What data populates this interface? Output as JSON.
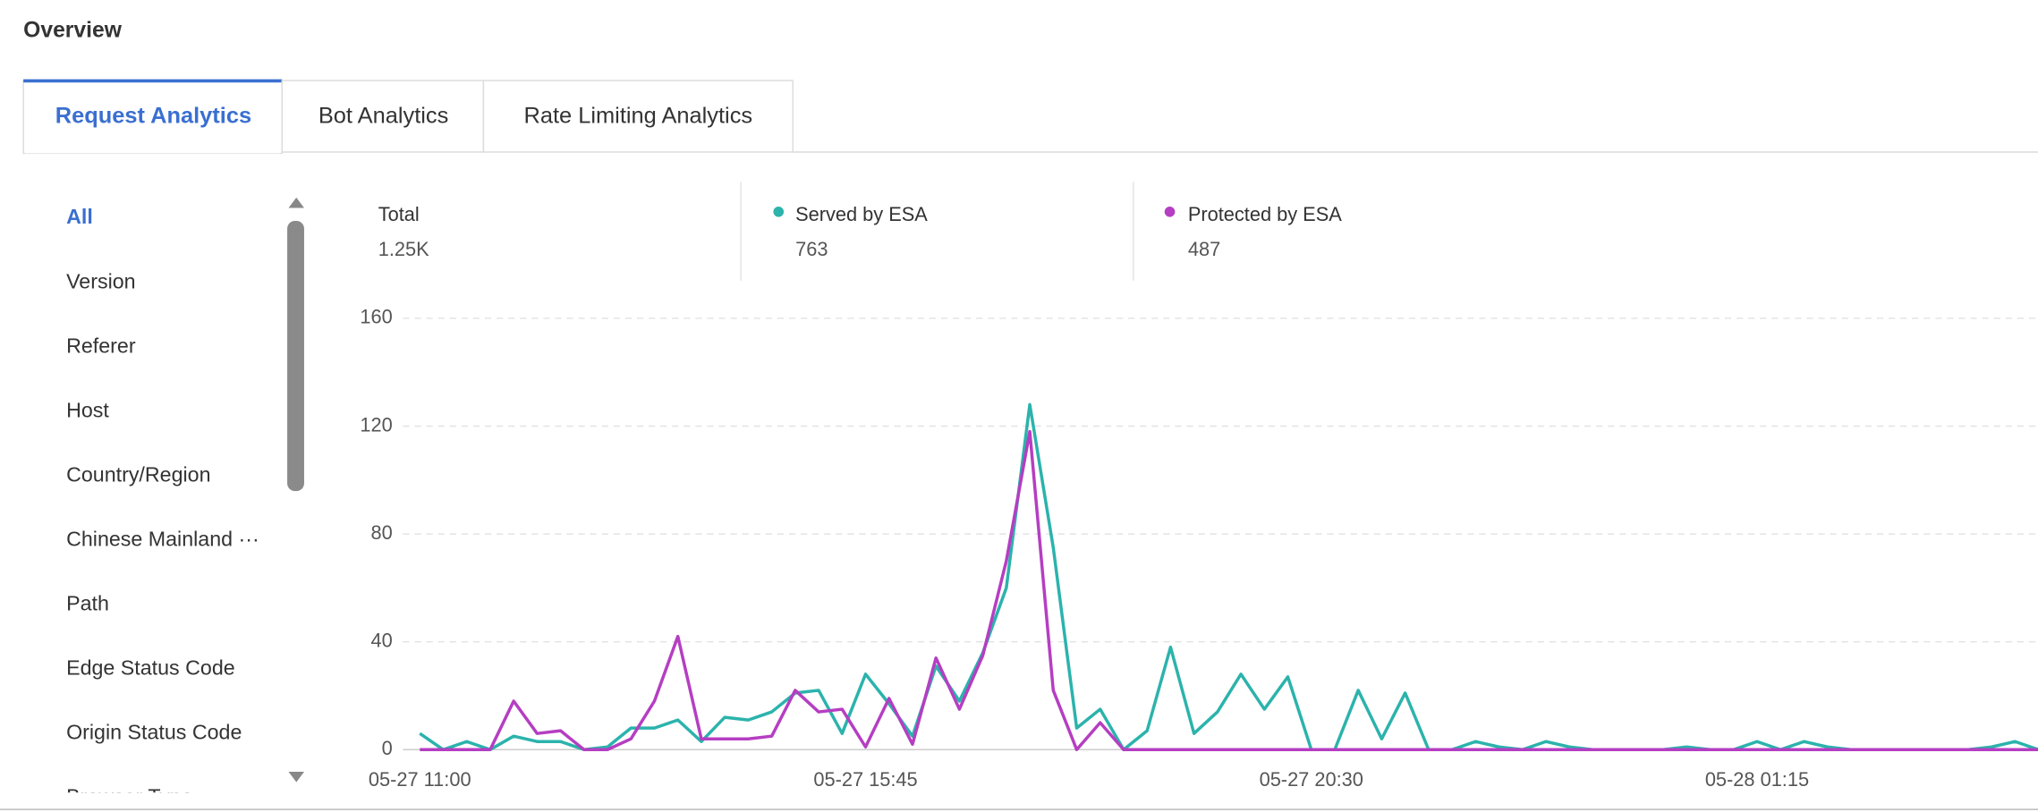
{
  "header": {
    "title": "Overview"
  },
  "tabs": [
    "Request Analytics",
    "Bot Analytics",
    "Rate Limiting Analytics"
  ],
  "sidebar": [
    "All",
    "Version",
    "Referer",
    "Host",
    "Country/Region",
    "Chinese Mainland ···",
    "Path",
    "Edge Status Code",
    "Origin Status Code",
    "Browser Type"
  ],
  "stats": {
    "total_label": "Total",
    "total": "1.25K",
    "served": "763",
    "protected": "487"
  },
  "chart_data": {
    "type": "line",
    "categories": [
      "05-27 11:00",
      null,
      null,
      null,
      null,
      null,
      null,
      null,
      null,
      null,
      null,
      null,
      null,
      null,
      null,
      null,
      null,
      null,
      null,
      "05-27 15:45",
      null,
      null,
      null,
      null,
      null,
      null,
      null,
      null,
      null,
      null,
      null,
      null,
      null,
      null,
      null,
      null,
      null,
      null,
      "05-27 20:30",
      null,
      null,
      null,
      null,
      null,
      null,
      null,
      null,
      null,
      null,
      null,
      null,
      null,
      null,
      null,
      null,
      null,
      null,
      "05-28 01:15",
      null,
      null,
      null,
      null,
      null,
      null,
      null,
      null,
      null,
      null,
      null,
      null
    ],
    "series": [
      {
        "name": "Served by ESA",
        "color": "#2bb3ac",
        "values": [
          6,
          0,
          3,
          0,
          5,
          3,
          3,
          0,
          1,
          8,
          8,
          11,
          3,
          12,
          11,
          14,
          21,
          22,
          6,
          28,
          17,
          5,
          31,
          18,
          36,
          60,
          128,
          75,
          8,
          15,
          0,
          7,
          38,
          6,
          14,
          28,
          15,
          27,
          0,
          0,
          22,
          4,
          21,
          0,
          0,
          3,
          1,
          0,
          3,
          1,
          0,
          0,
          0,
          0,
          1,
          0,
          0,
          3,
          0,
          3,
          1,
          0,
          0,
          0,
          0,
          0,
          0,
          1,
          3,
          0
        ]
      },
      {
        "name": "Protected by ESA",
        "color": "#b53ec2",
        "values": [
          0,
          0,
          0,
          0,
          18,
          6,
          7,
          0,
          0,
          4,
          18,
          42,
          4,
          4,
          4,
          5,
          22,
          14,
          15,
          1,
          19,
          2,
          34,
          15,
          35,
          70,
          118,
          22,
          0,
          10,
          0,
          0,
          0,
          0,
          0,
          0,
          0,
          0,
          0,
          0,
          0,
          0,
          0,
          0,
          0,
          0,
          0,
          0,
          0,
          0,
          0,
          0,
          0,
          0,
          0,
          0,
          0,
          0,
          0,
          0,
          0,
          0,
          0,
          0,
          0,
          0,
          0,
          0,
          0,
          0
        ]
      }
    ],
    "ylim": [
      0,
      160
    ],
    "yticks": [
      0,
      40,
      80,
      120,
      160
    ],
    "grid": true
  }
}
